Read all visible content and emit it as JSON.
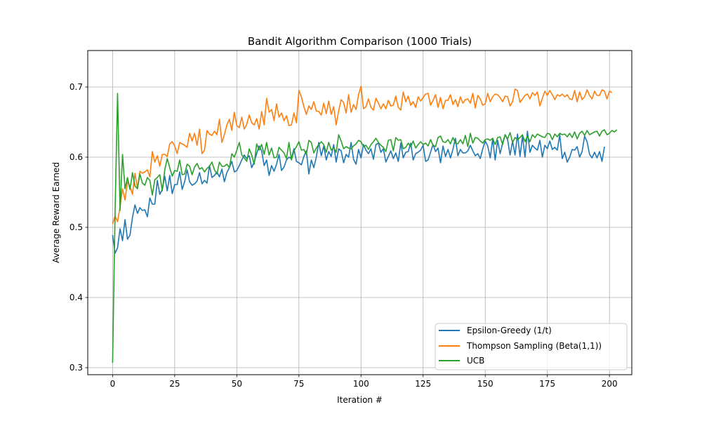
{
  "chart_data": {
    "type": "line",
    "title": "Bandit Algorithm Comparison (1000 Trials)",
    "xlabel": "Iteration #",
    "ylabel": "Average Reward Earned",
    "xlim": [
      -10,
      209
    ],
    "ylim": [
      0.29,
      0.752
    ],
    "x_ticks": [
      0,
      25,
      50,
      75,
      100,
      125,
      150,
      175,
      200
    ],
    "y_ticks": [
      0.3,
      0.4,
      0.5,
      0.6,
      0.7
    ],
    "grid": true,
    "legend_position": "lower-right",
    "series": [
      {
        "name": "Epsilon-Greedy (1/t)",
        "color": "#1f77b4",
        "values": [
          0.489,
          0.463,
          0.471,
          0.498,
          0.481,
          0.511,
          0.483,
          0.489,
          0.514,
          0.532,
          0.52,
          0.528,
          0.524,
          0.525,
          0.515,
          0.542,
          0.533,
          0.533,
          0.567,
          0.547,
          0.554,
          0.573,
          0.552,
          0.574,
          0.548,
          0.561,
          0.561,
          0.579,
          0.554,
          0.565,
          0.582,
          0.565,
          0.56,
          0.562,
          0.566,
          0.578,
          0.562,
          0.567,
          0.563,
          0.588,
          0.571,
          0.574,
          0.579,
          0.572,
          0.583,
          0.565,
          0.578,
          0.585,
          0.594,
          0.579,
          0.581,
          0.588,
          0.596,
          0.603,
          0.598,
          0.602,
          0.585,
          0.593,
          0.605,
          0.616,
          0.609,
          0.588,
          0.596,
          0.574,
          0.588,
          0.58,
          0.59,
          0.604,
          0.581,
          0.586,
          0.596,
          0.6,
          0.598,
          0.612,
          0.594,
          0.592,
          0.589,
          0.601,
          0.609,
          0.576,
          0.596,
          0.585,
          0.6,
          0.621,
          0.602,
          0.616,
          0.596,
          0.608,
          0.601,
          0.618,
          0.593,
          0.612,
          0.609,
          0.592,
          0.604,
          0.6,
          0.621,
          0.597,
          0.59,
          0.611,
          0.599,
          0.618,
          0.61,
          0.605,
          0.612,
          0.597,
          0.618,
          0.62,
          0.607,
          0.612,
          0.593,
          0.601,
          0.609,
          0.598,
          0.606,
          0.594,
          0.62,
          0.599,
          0.607,
          0.608,
          0.62,
          0.596,
          0.605,
          0.607,
          0.61,
          0.617,
          0.594,
          0.596,
          0.607,
          0.618,
          0.608,
          0.613,
          0.592,
          0.616,
          0.601,
          0.611,
          0.599,
          0.611,
          0.627,
          0.602,
          0.611,
          0.606,
          0.606,
          0.609,
          0.617,
          0.609,
          0.602,
          0.605,
          0.598,
          0.612,
          0.623,
          0.616,
          0.599,
          0.626,
          0.596,
          0.624,
          0.605,
          0.62,
          0.632,
          0.625,
          0.603,
          0.623,
          0.603,
          0.633,
          0.601,
          0.63,
          0.6,
          0.637,
          0.607,
          0.617,
          0.613,
          0.61,
          0.624,
          0.6,
          0.617,
          0.612,
          0.623,
          0.611,
          0.614,
          0.61,
          0.632,
          0.598,
          0.607,
          0.593,
          0.6,
          0.611,
          0.61,
          0.615,
          0.6,
          0.608,
          0.63,
          0.622,
          0.604,
          0.599,
          0.607,
          0.599,
          0.608,
          0.594,
          0.615
        ]
      },
      {
        "name": "Thompson Sampling (Beta(1,1))",
        "color": "#ff7f0e",
        "values": [
          0.505,
          0.516,
          0.508,
          0.529,
          0.555,
          0.539,
          0.565,
          0.558,
          0.547,
          0.577,
          0.556,
          0.58,
          0.577,
          0.579,
          0.582,
          0.572,
          0.608,
          0.593,
          0.602,
          0.587,
          0.604,
          0.604,
          0.601,
          0.619,
          0.622,
          0.616,
          0.605,
          0.621,
          0.619,
          0.617,
          0.614,
          0.634,
          0.623,
          0.634,
          0.617,
          0.64,
          0.605,
          0.61,
          0.638,
          0.633,
          0.631,
          0.637,
          0.632,
          0.654,
          0.621,
          0.632,
          0.646,
          0.654,
          0.638,
          0.664,
          0.645,
          0.642,
          0.657,
          0.64,
          0.647,
          0.66,
          0.649,
          0.646,
          0.655,
          0.64,
          0.665,
          0.646,
          0.684,
          0.664,
          0.668,
          0.652,
          0.676,
          0.657,
          0.663,
          0.652,
          0.659,
          0.645,
          0.646,
          0.663,
          0.649,
          0.695,
          0.686,
          0.672,
          0.661,
          0.673,
          0.668,
          0.679,
          0.666,
          0.665,
          0.66,
          0.677,
          0.662,
          0.68,
          0.661,
          0.672,
          0.646,
          0.666,
          0.682,
          0.678,
          0.663,
          0.689,
          0.664,
          0.675,
          0.668,
          0.689,
          0.701,
          0.669,
          0.672,
          0.683,
          0.671,
          0.667,
          0.684,
          0.677,
          0.669,
          0.676,
          0.669,
          0.681,
          0.673,
          0.674,
          0.687,
          0.671,
          0.667,
          0.693,
          0.679,
          0.687,
          0.674,
          0.679,
          0.671,
          0.686,
          0.68,
          0.685,
          0.69,
          0.691,
          0.674,
          0.681,
          0.689,
          0.671,
          0.685,
          0.669,
          0.681,
          0.681,
          0.689,
          0.675,
          0.682,
          0.672,
          0.686,
          0.677,
          0.682,
          0.683,
          0.677,
          0.691,
          0.67,
          0.688,
          0.683,
          0.674,
          0.676,
          0.691,
          0.679,
          0.686,
          0.69,
          0.689,
          0.685,
          0.679,
          0.687,
          0.686,
          0.673,
          0.679,
          0.697,
          0.695,
          0.678,
          0.683,
          0.688,
          0.69,
          0.683,
          0.692,
          0.688,
          0.693,
          0.673,
          0.684,
          0.694,
          0.688,
          0.695,
          0.689,
          0.682,
          0.689,
          0.687,
          0.69,
          0.686,
          0.689,
          0.683,
          0.682,
          0.695,
          0.679,
          0.693,
          0.682,
          0.686,
          0.696,
          0.688,
          0.683,
          0.694,
          0.688,
          0.688,
          0.696,
          0.694,
          0.683,
          0.694,
          0.692
        ]
      },
      {
        "name": "UCB",
        "color": "#2ca02c",
        "values": [
          0.307,
          0.522,
          0.691,
          0.524,
          0.604,
          0.555,
          0.571,
          0.554,
          0.578,
          0.559,
          0.555,
          0.576,
          0.563,
          0.56,
          0.571,
          0.567,
          0.546,
          0.568,
          0.571,
          0.575,
          0.552,
          0.582,
          0.598,
          0.585,
          0.573,
          0.581,
          0.58,
          0.596,
          0.575,
          0.576,
          0.59,
          0.587,
          0.575,
          0.586,
          0.591,
          0.583,
          0.585,
          0.579,
          0.584,
          0.587,
          0.593,
          0.582,
          0.576,
          0.593,
          0.587,
          0.587,
          0.59,
          0.585,
          0.605,
          0.6,
          0.61,
          0.621,
          0.603,
          0.599,
          0.594,
          0.612,
          0.603,
          0.59,
          0.619,
          0.61,
          0.618,
          0.604,
          0.621,
          0.603,
          0.613,
          0.599,
          0.6,
          0.614,
          0.61,
          0.606,
          0.598,
          0.621,
          0.596,
          0.609,
          0.615,
          0.622,
          0.61,
          0.611,
          0.604,
          0.624,
          0.621,
          0.606,
          0.613,
          0.618,
          0.622,
          0.618,
          0.607,
          0.621,
          0.61,
          0.614,
          0.607,
          0.632,
          0.623,
          0.612,
          0.615,
          0.613,
          0.612,
          0.616,
          0.619,
          0.624,
          0.622,
          0.615,
          0.617,
          0.611,
          0.618,
          0.622,
          0.627,
          0.621,
          0.617,
          0.614,
          0.608,
          0.624,
          0.625,
          0.609,
          0.628,
          0.624,
          0.625,
          0.612,
          0.614,
          0.62,
          0.615,
          0.623,
          0.613,
          0.618,
          0.622,
          0.618,
          0.62,
          0.616,
          0.625,
          0.617,
          0.615,
          0.628,
          0.63,
          0.622,
          0.621,
          0.625,
          0.619,
          0.628,
          0.62,
          0.619,
          0.625,
          0.619,
          0.631,
          0.615,
          0.634,
          0.62,
          0.628,
          0.627,
          0.623,
          0.62,
          0.625,
          0.626,
          0.624,
          0.627,
          0.618,
          0.628,
          0.629,
          0.618,
          0.632,
          0.626,
          0.635,
          0.621,
          0.628,
          0.625,
          0.628,
          0.632,
          0.622,
          0.63,
          0.622,
          0.632,
          0.628,
          0.633,
          0.631,
          0.629,
          0.628,
          0.634,
          0.633,
          0.625,
          0.633,
          0.629,
          0.634,
          0.632,
          0.633,
          0.629,
          0.634,
          0.628,
          0.636,
          0.626,
          0.634,
          0.637,
          0.631,
          0.638,
          0.632,
          0.634,
          0.636,
          0.637,
          0.63,
          0.637,
          0.639,
          0.632,
          0.634,
          0.638,
          0.636,
          0.639
        ]
      }
    ]
  }
}
